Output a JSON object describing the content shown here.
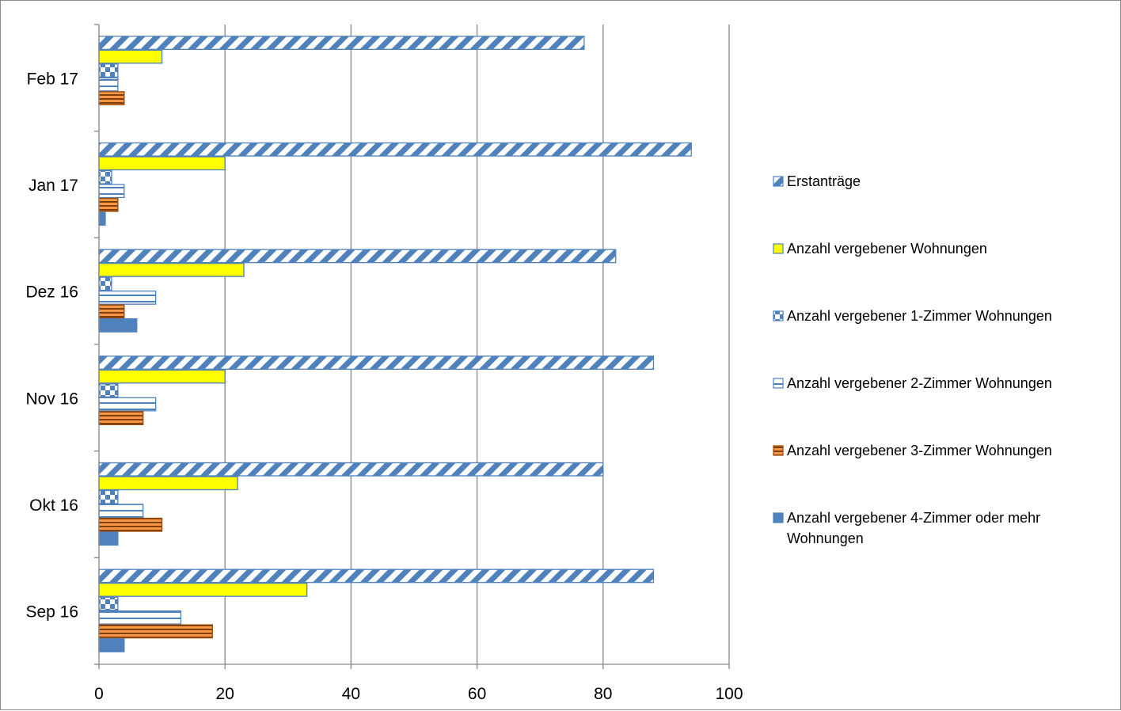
{
  "chart_data": {
    "type": "bar",
    "orientation": "horizontal",
    "categories": [
      "Feb 17",
      "Jan 17",
      "Dez 16",
      "Nov 16",
      "Okt 16",
      "Sep 16"
    ],
    "xlim": [
      0,
      100
    ],
    "xticks": [
      0,
      20,
      40,
      60,
      80,
      100
    ],
    "grid": true,
    "legend_position": "right",
    "series": [
      {
        "name": "Erstanträge",
        "pattern": "diagonal-stripes",
        "color": "#4f81bd",
        "values": [
          77,
          94,
          82,
          88,
          80,
          88
        ]
      },
      {
        "name": "Anzahl vergebener Wohnungen",
        "pattern": "solid",
        "color": "#ffff00",
        "values": [
          10,
          20,
          23,
          20,
          22,
          33
        ]
      },
      {
        "name": "Anzahl vergebener 1-Zimmer Wohnungen",
        "pattern": "checker",
        "color": "#4f81bd",
        "values": [
          3,
          2,
          2,
          3,
          3,
          3
        ]
      },
      {
        "name": "Anzahl vergebener 2-Zimmer Wohnungen",
        "pattern": "horizontal-lines",
        "color": "#4f81bd",
        "values": [
          3,
          4,
          9,
          9,
          7,
          13
        ]
      },
      {
        "name": "Anzahl vergebener 3-Zimmer Wohnungen",
        "pattern": "orange-horizontal-stripes",
        "color": "#e46c0a",
        "values": [
          4,
          3,
          4,
          7,
          10,
          18
        ]
      },
      {
        "name": "Anzahl vergebener 4-Zimmer oder mehr Wohnungen",
        "pattern": "solid",
        "color": "#4f81bd",
        "values": [
          0,
          1,
          6,
          0,
          3,
          4
        ]
      }
    ]
  }
}
